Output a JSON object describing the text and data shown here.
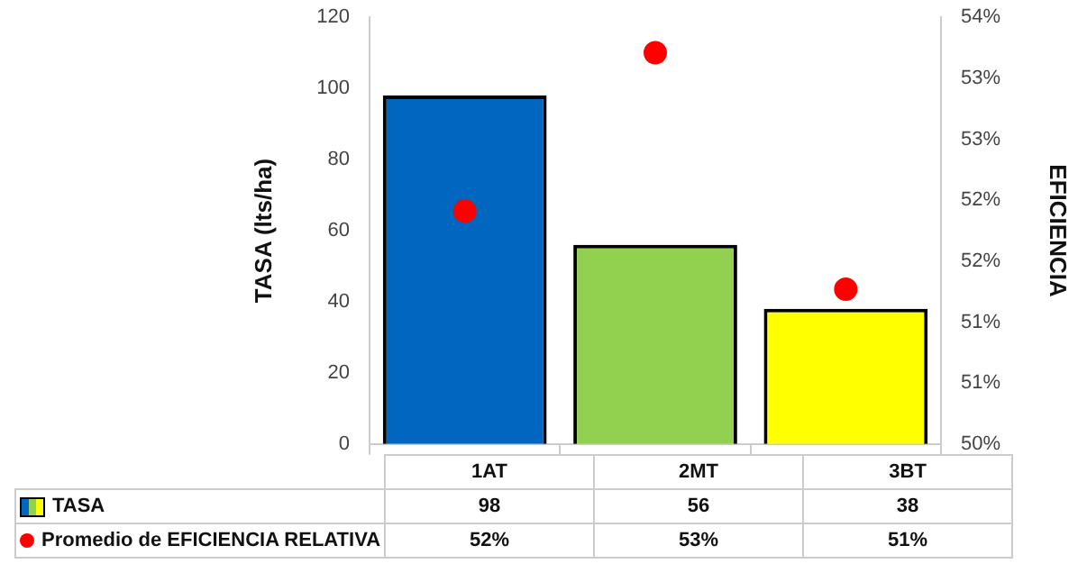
{
  "chart_data": {
    "type": "bar",
    "ylabel": "TASA (lts/ha)",
    "y2label": "EFICIENCIA",
    "categories": [
      "1AT",
      "2MT",
      "3BT"
    ],
    "series": [
      {
        "name": "TASA",
        "colors": [
          "#0066c0",
          "#92d050",
          "#ffff00"
        ],
        "values": [
          98,
          56,
          38
        ],
        "value_labels": [
          "98",
          "56",
          "38"
        ]
      },
      {
        "name": "Promedio de EFICIENCIA RELATIVA",
        "type": "scatter",
        "axis": "y2",
        "color": "#ff0000",
        "marker": "circle",
        "x": [
          "1AT",
          "2MT",
          "3BT"
        ],
        "values": [
          51.91,
          53.21,
          51.27
        ],
        "value_labels": [
          "52%",
          "53%",
          "51%"
        ]
      }
    ],
    "ylim": [
      0,
      120
    ],
    "yticks": [
      0,
      20,
      40,
      60,
      80,
      100,
      120
    ],
    "y2lim": [
      50,
      53.5
    ],
    "y2ticks": [
      {
        "value": 50,
        "label": "50%"
      },
      {
        "value": 50.5,
        "label": "51%"
      },
      {
        "value": 51,
        "label": "51%"
      },
      {
        "value": 51.5,
        "label": "52%"
      },
      {
        "value": 52,
        "label": "52%"
      },
      {
        "value": 52.5,
        "label": "53%"
      },
      {
        "value": 53,
        "label": "53%"
      },
      {
        "value": 53.5,
        "label": "54%"
      }
    ],
    "grid": false,
    "legend": "bottom"
  }
}
